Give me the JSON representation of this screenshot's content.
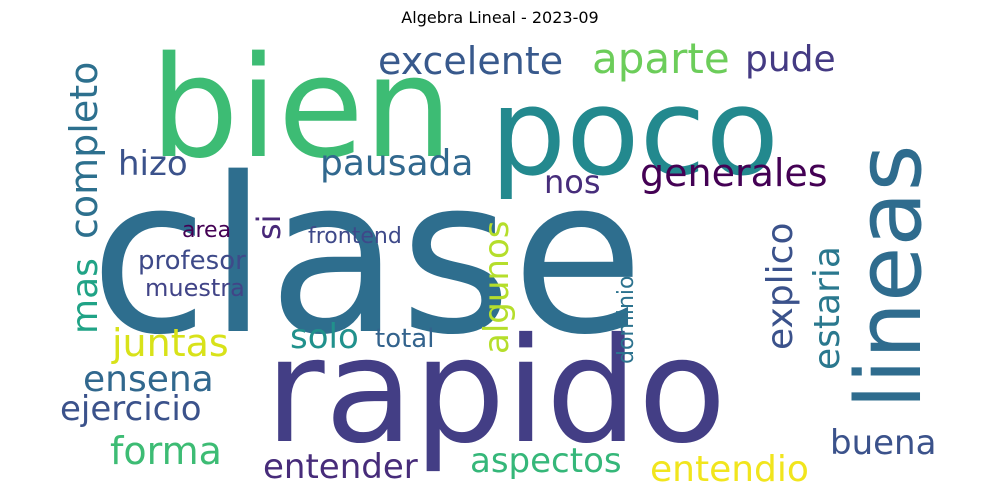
{
  "title": "Algebra Lineal - 2023-09",
  "words": {
    "clase": {
      "text": "clase",
      "color": "#2e6e8e"
    },
    "rapido": {
      "text": "rapido",
      "color": "#433e85"
    },
    "bien": {
      "text": "bien",
      "color": "#3dbc74"
    },
    "poco": {
      "text": "poco",
      "color": "#23898e"
    },
    "lineas": {
      "text": "lineas",
      "color": "#2f6c8e"
    },
    "excelente": {
      "text": "excelente",
      "color": "#38598c"
    },
    "aparte": {
      "text": "aparte",
      "color": "#6ccd5a"
    },
    "pude": {
      "text": "pude",
      "color": "#443a83"
    },
    "completo": {
      "text": "completo",
      "color": "#2d708e"
    },
    "hizo": {
      "text": "hizo",
      "color": "#3b528b"
    },
    "pausada": {
      "text": "pausada",
      "color": "#31688e"
    },
    "nos": {
      "text": "nos",
      "color": "#472d7b"
    },
    "generales": {
      "text": "generales",
      "color": "#440154"
    },
    "si": {
      "text": "si",
      "color": "#482878"
    },
    "area": {
      "text": "area",
      "color": "#440154"
    },
    "frontend": {
      "text": "frontend",
      "color": "#3e4989"
    },
    "algunos": {
      "text": "algunos",
      "color": "#b5de2b"
    },
    "explico": {
      "text": "explico",
      "color": "#3b528b"
    },
    "estaria": {
      "text": "estaria",
      "color": "#2a788e"
    },
    "mas": {
      "text": "mas",
      "color": "#20a386"
    },
    "profesor": {
      "text": "profesor",
      "color": "#3e4a89"
    },
    "muestra": {
      "text": "muestra",
      "color": "#414487"
    },
    "dominio": {
      "text": "dominio",
      "color": "#2c728e"
    },
    "juntas": {
      "text": "juntas",
      "color": "#d8e219"
    },
    "solo": {
      "text": "solo",
      "color": "#21918c"
    },
    "total": {
      "text": "total",
      "color": "#33638d"
    },
    "ensena": {
      "text": "ensena",
      "color": "#31688e"
    },
    "ejercicio": {
      "text": "ejercicio",
      "color": "#3b528b"
    },
    "forma": {
      "text": "forma",
      "color": "#3dbc74"
    },
    "entender": {
      "text": "entender",
      "color": "#472c7a"
    },
    "aspectos": {
      "text": "aspectos",
      "color": "#35b779"
    },
    "entendio": {
      "text": "entendio",
      "color": "#f1e51d"
    },
    "buena": {
      "text": "buena",
      "color": "#3b528b"
    }
  }
}
